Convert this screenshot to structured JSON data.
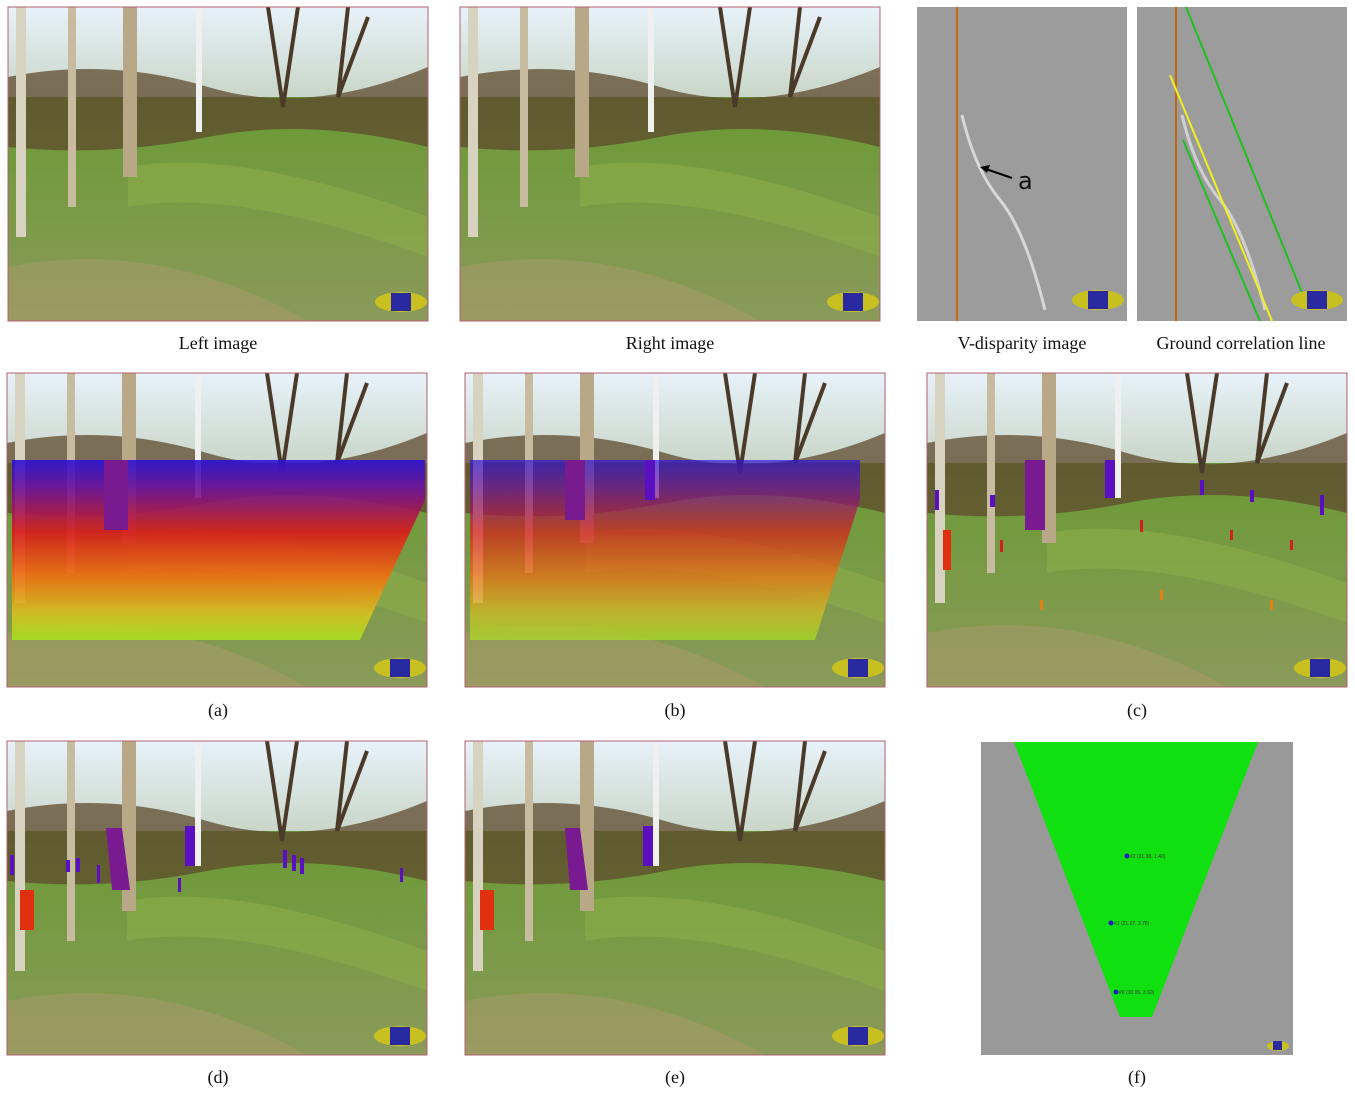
{
  "panels": [
    {
      "caption": "Left image"
    },
    {
      "caption": "Right image"
    },
    {
      "caption": "V-disparity image"
    },
    {
      "caption": "Ground correlation line"
    },
    {
      "caption": "(a)"
    },
    {
      "caption": "(b)"
    },
    {
      "caption": "(c)"
    },
    {
      "caption": "(d)"
    },
    {
      "caption": "(e)"
    },
    {
      "caption": "(f)"
    }
  ],
  "annotation": "a",
  "map_labels": [
    "#2 (31.38, 1.40)",
    "#1 (21.07, 3.76)",
    "#0 (10.05, 3.60)"
  ]
}
